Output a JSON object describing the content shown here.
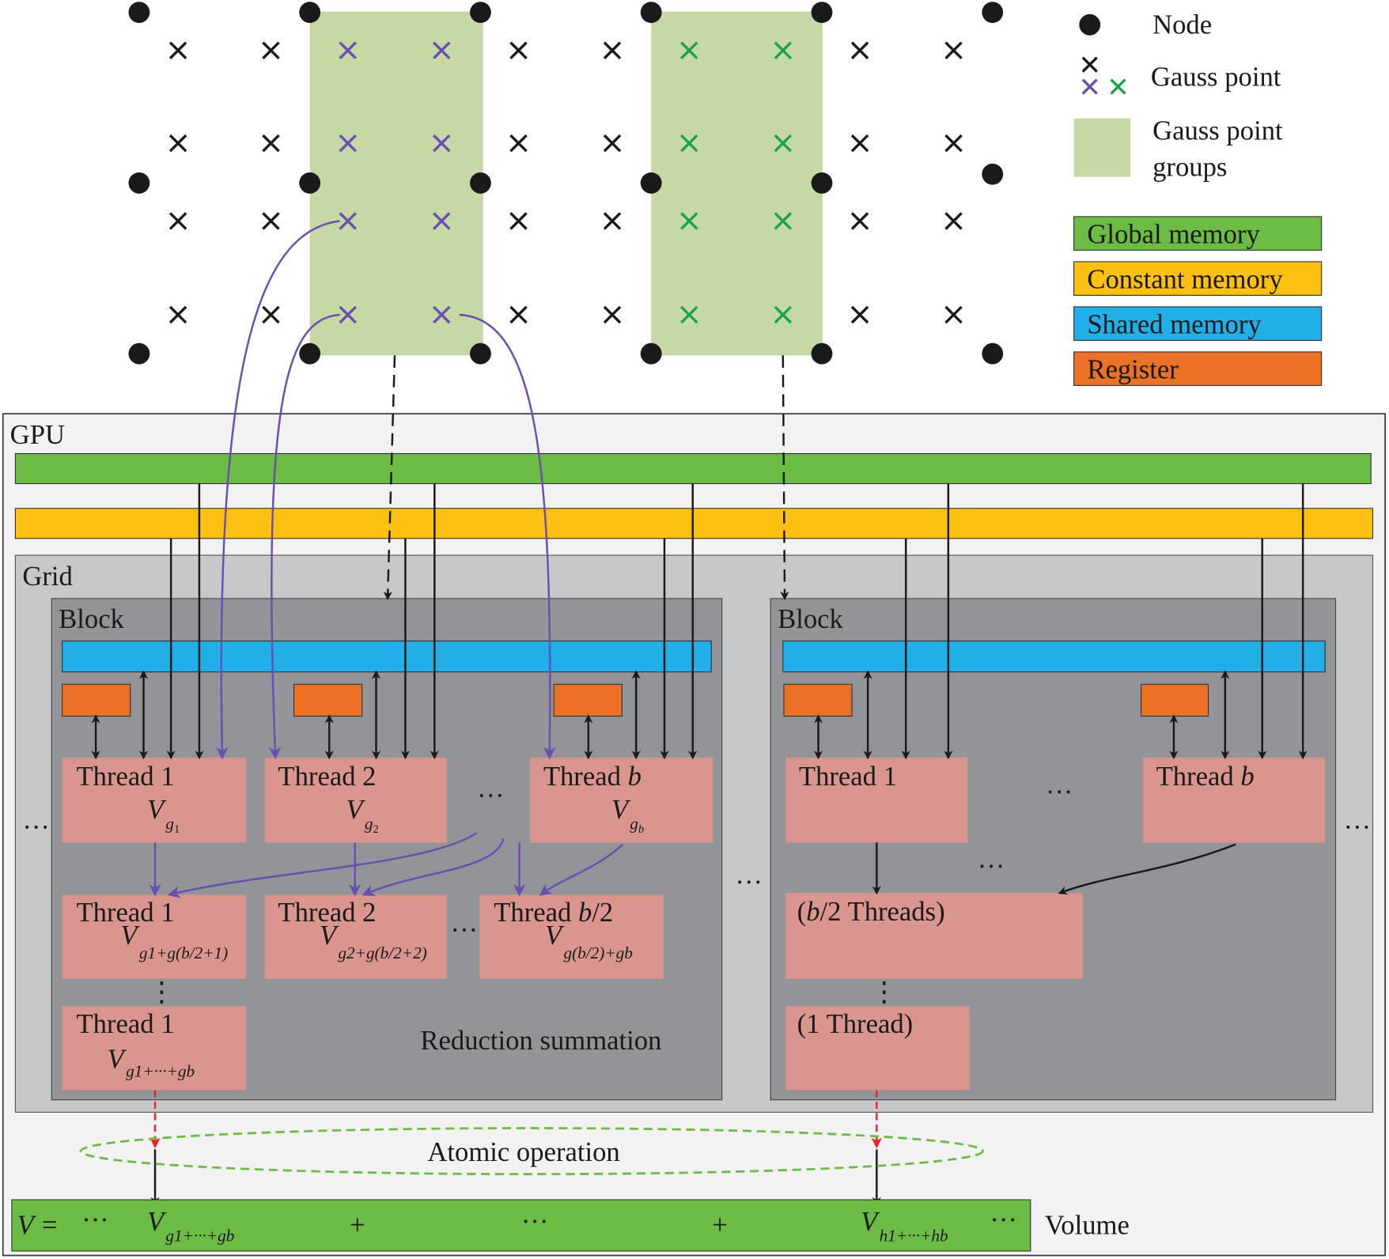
{
  "colors": {
    "global_memory": "#6cbb45",
    "constant_memory": "#fcc010",
    "shared_memory": "#22aee6",
    "register": "#eb7225",
    "thread": "#d9958e",
    "gauss_group": "#c6d9a5",
    "gauss_purple": "#6a4fb0",
    "gauss_green": "#1aa34a",
    "block": "#929497",
    "grid": "#c7c8ca",
    "gpu": "#f2f2f2"
  },
  "legend": {
    "node": "Node",
    "gauss_point": "Gauss point",
    "groups_line1": "Gauss point",
    "groups_line2": "groups",
    "global_memory": "Global memory",
    "constant_memory": "Constant memory",
    "shared_memory": "Shared memory",
    "register": "Register"
  },
  "gpu": {
    "label": "GPU",
    "grid_label": "Grid",
    "block_label": "Block",
    "reduction_label": "Reduction summation",
    "atomic_label": "Atomic operation",
    "volume_label": "Volume",
    "ellipsis": "···",
    "vdots": "⋮"
  },
  "block1": {
    "thread1": "Thread 1",
    "thread2": "Thread 2",
    "thread_b_prefix": "Thread ",
    "b": "b",
    "thread_b2_suffix": "/2",
    "V": "V",
    "g1": "g",
    "s1": "1",
    "s2": "2",
    "sb": "b",
    "r2_t1_sub": "g1+g(b/2+1)",
    "r2_t2_sub": "g2+g(b/2+2)",
    "r2_tb_sub": "g(b/2)+gb",
    "r3_sub": "g1+···+gb"
  },
  "block2": {
    "thread1": "Thread 1",
    "thread_b_prefix": "Thread ",
    "b": "b",
    "half_threads": "(b/2 Threads)",
    "half_open": "(",
    "half_rest": "/2 Threads)",
    "one_thread": "(1 Thread)"
  },
  "volume": {
    "lhs": "V =",
    "plus": "+",
    "term1_sub": "g1+···+gb",
    "term2_sub": "h1+···+hb"
  }
}
